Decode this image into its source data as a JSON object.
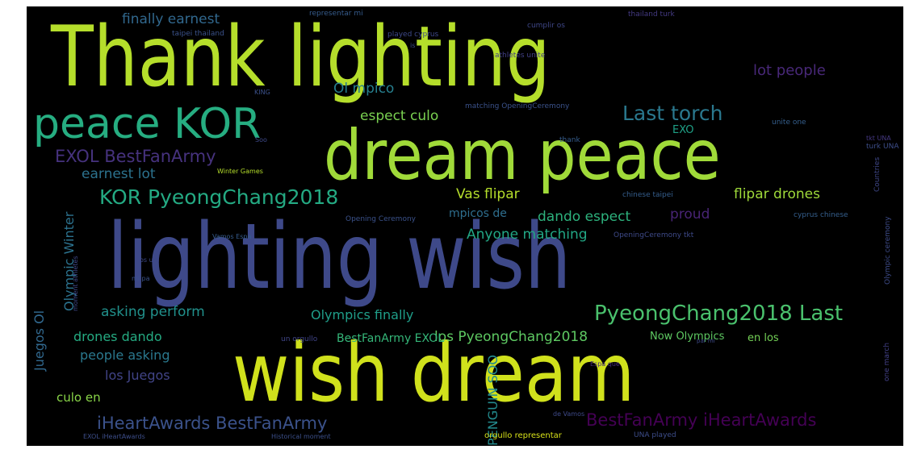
{
  "colors": {
    "background": "#000000",
    "page": "#ffffff"
  },
  "words": [
    {
      "text": "Thank lighting",
      "color": "#b5de2b"
    },
    {
      "text": "dream peace",
      "color": "#a0da39"
    },
    {
      "text": "lighting wish",
      "color": "#3e4989"
    },
    {
      "text": "wish dream",
      "color": "#d0e11c"
    },
    {
      "text": "peace KOR",
      "color": "#26ad81"
    },
    {
      "text": "KOR PyeongChang2018",
      "color": "#24aa83"
    },
    {
      "text": "PyeongChang2018 Last",
      "color": "#4ac16d"
    },
    {
      "text": "Last torch",
      "color": "#2a788e"
    },
    {
      "text": "EXOL BestFanArmy",
      "color": "#46327e"
    },
    {
      "text": "iHeartAwards BestFanArmy",
      "color": "#3b528b"
    },
    {
      "text": "BestFanArmy iHeartAwards",
      "color": "#440154"
    },
    {
      "text": "finally earnest",
      "color": "#31688e"
    },
    {
      "text": "lot people",
      "color": "#482878"
    },
    {
      "text": "Ol mpico",
      "color": "#277f8e"
    },
    {
      "text": "espect culo",
      "color": "#7ad151"
    },
    {
      "text": "earnest lot",
      "color": "#2c728e"
    },
    {
      "text": "Vas flipar",
      "color": "#b5de2b"
    },
    {
      "text": "flipar drones",
      "color": "#9fda3a"
    },
    {
      "text": "dando espect",
      "color": "#2db27d"
    },
    {
      "text": "mpicos de",
      "color": "#2e6e8e"
    },
    {
      "text": "proud",
      "color": "#482475"
    },
    {
      "text": "Anyone matching",
      "color": "#22a785"
    },
    {
      "text": "asking perform",
      "color": "#21918c"
    },
    {
      "text": "Olympics finally",
      "color": "#1f9e89"
    },
    {
      "text": "drones dando",
      "color": "#25ab82"
    },
    {
      "text": "los PyeongChang2018",
      "color": "#5ec962"
    },
    {
      "text": "BestFanArmy EXOL",
      "color": "#35b779"
    },
    {
      "text": "people asking",
      "color": "#2a788e"
    },
    {
      "text": "los Juegos",
      "color": "#414487"
    },
    {
      "text": "culo en",
      "color": "#89d548"
    },
    {
      "text": "en los",
      "color": "#73d056"
    },
    {
      "text": "Now Olympics",
      "color": "#5ec962"
    },
    {
      "text": "EXO",
      "color": "#1fa187"
    },
    {
      "text": "Olympic Winter",
      "color": "#2c728e"
    },
    {
      "text": "Juegos Ol",
      "color": "#31688e"
    },
    {
      "text": "PENGUIN SOO",
      "color": "#238a8d"
    },
    {
      "text": "representar mi",
      "color": "#365c8d"
    },
    {
      "text": "taipei thailand",
      "color": "#3b528b"
    },
    {
      "text": "played cyprus",
      "color": "#3e4989"
    },
    {
      "text": "cumplir os",
      "color": "#3f4788"
    },
    {
      "text": "thailand turk",
      "color": "#443a83"
    },
    {
      "text": "athletes unite",
      "color": "#424086"
    },
    {
      "text": "matching OpeningCeremony",
      "color": "#3b528b"
    },
    {
      "text": "thank",
      "color": "#365d8d"
    },
    {
      "text": "unite one",
      "color": "#355f8d"
    },
    {
      "text": "Winter Games",
      "color": "#b5de2b"
    },
    {
      "text": "chinese taipei",
      "color": "#355e8d"
    },
    {
      "text": "Opening Ceremony",
      "color": "#3b528b"
    },
    {
      "text": "cyprus chinese",
      "color": "#355f8d"
    },
    {
      "text": "OpeningCeremony tkt",
      "color": "#3e4a89"
    },
    {
      "text": "Vamos Espa",
      "color": "#365c8d"
    },
    {
      "text": "os un",
      "color": "#3e4989"
    },
    {
      "text": "mi pa",
      "color": "#3b528b"
    },
    {
      "text": "un orgullo",
      "color": "#404588"
    },
    {
      "text": "Espa que",
      "color": "#472d7b"
    },
    {
      "text": "de Vamos",
      "color": "#3e4a89"
    },
    {
      "text": "EXOL iHeartAwards",
      "color": "#3d4e8a"
    },
    {
      "text": "Historical moment",
      "color": "#3c508b"
    },
    {
      "text": "orgullo representar",
      "color": "#d8e219"
    },
    {
      "text": "UNA played",
      "color": "#3d4d8a"
    },
    {
      "text": "moment athletes",
      "color": "#3f4889"
    },
    {
      "text": "one march",
      "color": "#424086"
    },
    {
      "text": "Olympic ceremony",
      "color": "#3e4c8a"
    },
    {
      "text": "turk UNA",
      "color": "#3d4e8a"
    },
    {
      "text": "tkt UNA",
      "color": "#453882"
    },
    {
      "text": "Countries",
      "color": "#3f4788"
    },
    {
      "text": "KING",
      "color": "#3b518b"
    },
    {
      "text": "Soo",
      "color": "#3e4989"
    },
    {
      "text": "is",
      "color": "#3d4d8a"
    },
    {
      "text": "par mi",
      "color": "#3e4a89"
    }
  ]
}
